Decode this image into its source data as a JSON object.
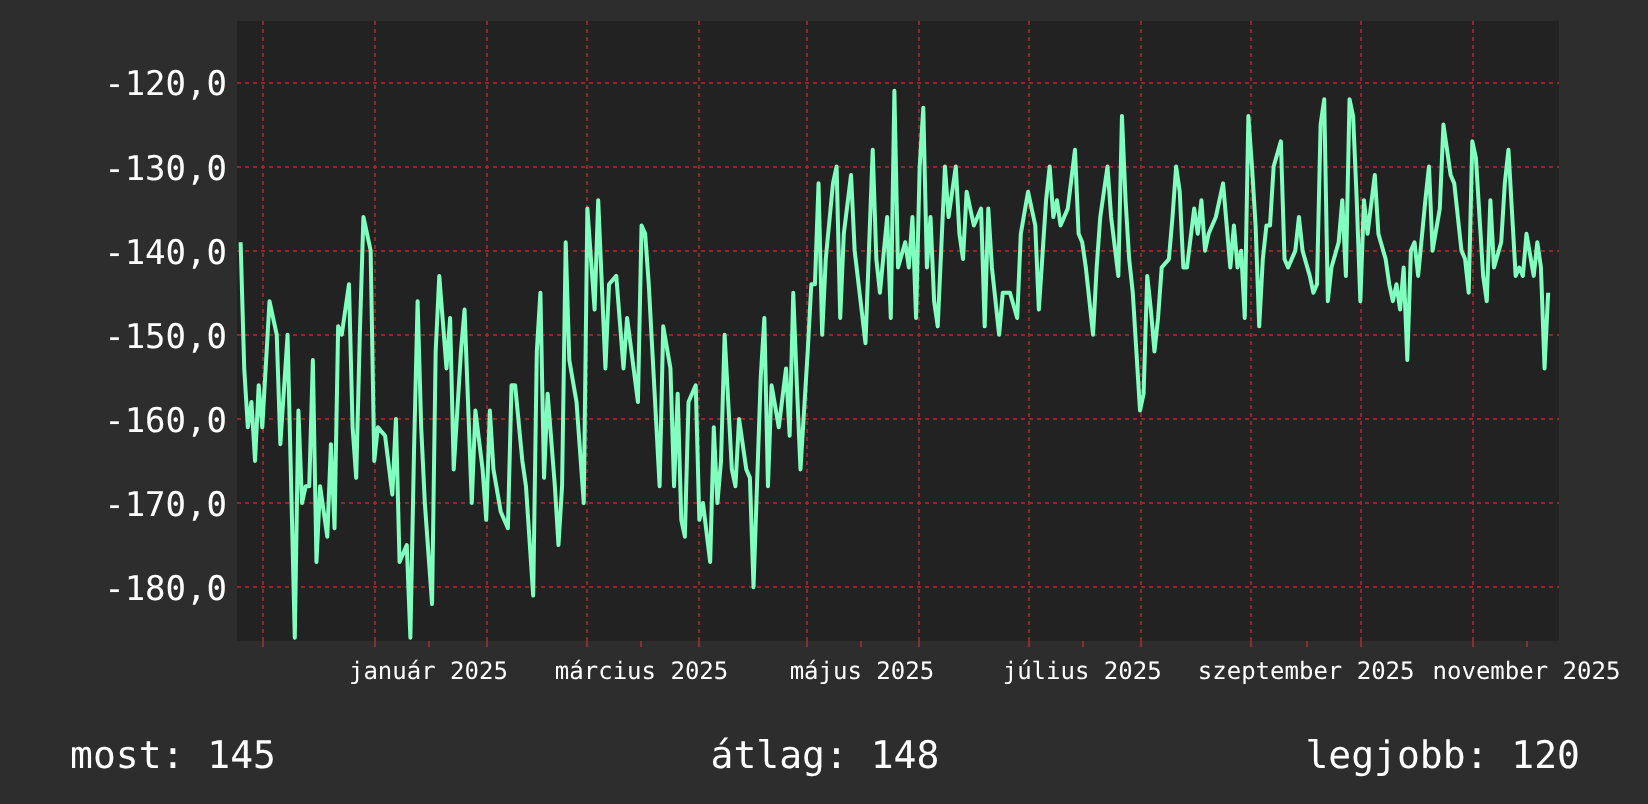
{
  "chart_data": {
    "type": "line",
    "x": [
      "2024-11-25",
      "2024-11-26",
      "2024-11-27",
      "2024-11-28",
      "2024-11-29",
      "2024-11-30",
      "2024-12-01",
      "2024-12-03",
      "2024-12-05",
      "2024-12-06",
      "2024-12-08",
      "2024-12-10",
      "2024-12-11",
      "2024-12-12",
      "2024-12-13",
      "2024-12-14",
      "2024-12-15",
      "2024-12-16",
      "2024-12-17",
      "2024-12-19",
      "2024-12-20",
      "2024-12-21",
      "2024-12-22",
      "2024-12-23",
      "2024-12-25",
      "2024-12-26",
      "2024-12-27",
      "2024-12-28",
      "2024-12-29",
      "2024-12-31",
      "2025-01-01",
      "2025-01-02",
      "2025-01-04",
      "2025-01-06",
      "2025-01-07",
      "2025-01-08",
      "2025-01-10",
      "2025-01-11",
      "2025-01-12",
      "2025-01-13",
      "2025-01-14",
      "2025-01-15",
      "2025-01-17",
      "2025-01-18",
      "2025-01-19",
      "2025-01-21",
      "2025-01-22",
      "2025-01-23",
      "2025-01-25",
      "2025-01-26",
      "2025-01-28",
      "2025-01-29",
      "2025-01-31",
      "2025-02-01",
      "2025-02-02",
      "2025-02-03",
      "2025-02-05",
      "2025-02-07",
      "2025-02-08",
      "2025-02-09",
      "2025-02-11",
      "2025-02-12",
      "2025-02-14",
      "2025-02-15",
      "2025-02-16",
      "2025-02-17",
      "2025-02-18",
      "2025-02-20",
      "2025-02-21",
      "2025-02-22",
      "2025-02-23",
      "2025-02-24",
      "2025-02-26",
      "2025-02-27",
      "2025-02-28",
      "2025-03-01",
      "2025-03-03",
      "2025-03-04",
      "2025-03-06",
      "2025-03-07",
      "2025-03-09",
      "2025-03-11",
      "2025-03-12",
      "2025-03-15",
      "2025-03-16",
      "2025-03-17",
      "2025-03-18",
      "2025-03-20",
      "2025-03-21",
      "2025-03-22",
      "2025-03-24",
      "2025-03-25",
      "2025-03-26",
      "2025-03-27",
      "2025-03-28",
      "2025-03-29",
      "2025-03-31",
      "2025-04-01",
      "2025-04-02",
      "2025-04-04",
      "2025-04-05",
      "2025-04-06",
      "2025-04-07",
      "2025-04-08",
      "2025-04-10",
      "2025-04-11",
      "2025-04-12",
      "2025-04-14",
      "2025-04-15",
      "2025-04-16",
      "2025-04-18",
      "2025-04-19",
      "2025-04-20",
      "2025-04-21",
      "2025-04-23",
      "2025-04-25",
      "2025-04-26",
      "2025-04-27",
      "2025-04-28",
      "2025-04-29",
      "2025-05-01",
      "2025-05-02",
      "2025-05-03",
      "2025-05-04",
      "2025-05-05",
      "2025-05-06",
      "2025-05-08",
      "2025-05-09",
      "2025-05-10",
      "2025-05-11",
      "2025-05-13",
      "2025-05-14",
      "2025-05-17",
      "2025-05-19",
      "2025-05-20",
      "2025-05-21",
      "2025-05-23",
      "2025-05-24",
      "2025-05-25",
      "2025-05-26",
      "2025-05-28",
      "2025-05-29",
      "2025-05-30",
      "2025-05-31",
      "2025-06-01",
      "2025-06-02",
      "2025-06-03",
      "2025-06-04",
      "2025-06-05",
      "2025-06-06",
      "2025-06-08",
      "2025-06-09",
      "2025-06-11",
      "2025-06-12",
      "2025-06-13",
      "2025-06-14",
      "2025-06-16",
      "2025-06-18",
      "2025-06-19",
      "2025-06-20",
      "2025-06-21",
      "2025-06-23",
      "2025-06-24",
      "2025-06-26",
      "2025-06-28",
      "2025-06-29",
      "2025-07-01",
      "2025-07-03",
      "2025-07-04",
      "2025-07-06",
      "2025-07-07",
      "2025-07-08",
      "2025-07-09",
      "2025-07-10",
      "2025-07-12",
      "2025-07-14",
      "2025-07-15",
      "2025-07-16",
      "2025-07-17",
      "2025-07-19",
      "2025-07-20",
      "2025-07-21",
      "2025-07-23",
      "2025-07-24",
      "2025-07-26",
      "2025-07-27",
      "2025-07-28",
      "2025-07-29",
      "2025-07-30",
      "2025-08-01",
      "2025-08-02",
      "2025-08-03",
      "2025-08-04",
      "2025-08-05",
      "2025-08-06",
      "2025-08-07",
      "2025-08-09",
      "2025-08-10",
      "2025-08-11",
      "2025-08-12",
      "2025-08-13",
      "2025-08-14",
      "2025-08-16",
      "2025-08-17",
      "2025-08-18",
      "2025-08-19",
      "2025-08-20",
      "2025-08-22",
      "2025-08-24",
      "2025-08-26",
      "2025-08-27",
      "2025-08-28",
      "2025-08-29",
      "2025-08-30",
      "2025-08-31",
      "2025-09-01",
      "2025-09-02",
      "2025-09-03",
      "2025-09-04",
      "2025-09-05",
      "2025-09-06",
      "2025-09-07",
      "2025-09-09",
      "2025-09-10",
      "2025-09-11",
      "2025-09-13",
      "2025-09-14",
      "2025-09-15",
      "2025-09-17",
      "2025-09-18",
      "2025-09-19",
      "2025-09-20",
      "2025-09-21",
      "2025-09-22",
      "2025-09-23",
      "2025-09-25",
      "2025-09-26",
      "2025-09-27",
      "2025-09-28",
      "2025-09-29",
      "2025-09-30",
      "2025-10-01",
      "2025-10-02",
      "2025-10-03",
      "2025-10-05",
      "2025-10-06",
      "2025-10-08",
      "2025-10-09",
      "2025-10-10",
      "2025-10-11",
      "2025-10-12",
      "2025-10-13",
      "2025-10-14",
      "2025-10-15",
      "2025-10-16",
      "2025-10-17",
      "2025-10-19",
      "2025-10-20",
      "2025-10-21",
      "2025-10-23",
      "2025-10-24",
      "2025-10-26",
      "2025-10-27",
      "2025-10-29",
      "2025-10-30",
      "2025-10-31",
      "2025-11-01",
      "2025-11-02",
      "2025-11-04",
      "2025-11-05",
      "2025-11-06",
      "2025-11-07",
      "2025-11-09",
      "2025-11-10",
      "2025-11-11",
      "2025-11-13",
      "2025-11-14",
      "2025-11-15",
      "2025-11-16",
      "2025-11-18",
      "2025-11-19",
      "2025-11-20",
      "2025-11-21",
      "2025-11-22"
    ],
    "series": [
      {
        "color": "#80ffbf",
        "values": [
          -139,
          -154,
          -161,
          -158,
          -165,
          -156,
          -161,
          -146,
          -150,
          -163,
          -150,
          -186,
          -159,
          -170,
          -168,
          -168,
          -153,
          -177,
          -168,
          -174,
          -163,
          -173,
          -149,
          -150,
          -144,
          -161,
          -167,
          -150,
          -136,
          -140,
          -165,
          -161,
          -162,
          -169,
          -160,
          -177,
          -175,
          -186,
          -164,
          -146,
          -161,
          -170,
          -182,
          -152,
          -143,
          -154,
          -148,
          -166,
          -152,
          -147,
          -170,
          -159,
          -166,
          -172,
          -159,
          -166,
          -171,
          -173,
          -156,
          -156,
          -165,
          -168,
          -181,
          -152,
          -145,
          -167,
          -157,
          -168,
          -175,
          -168,
          -139,
          -153,
          -158,
          -164,
          -170,
          -135,
          -147,
          -134,
          -154,
          -144,
          -143,
          -154,
          -148,
          -158,
          -137,
          -138,
          -144,
          -160,
          -168,
          -149,
          -154,
          -168,
          -157,
          -172,
          -174,
          -158,
          -156,
          -172,
          -170,
          -177,
          -161,
          -170,
          -165,
          -150,
          -166,
          -168,
          -160,
          -166,
          -167,
          -180,
          -155,
          -148,
          -168,
          -156,
          -161,
          -154,
          -162,
          -145,
          -156,
          -166,
          -152,
          -144,
          -144,
          -132,
          -150,
          -141,
          -132,
          -130,
          -148,
          -138,
          -131,
          -140,
          -151,
          -128,
          -141,
          -145,
          -136,
          -148,
          -121,
          -142,
          -139,
          -142,
          -136,
          -148,
          -130,
          -123,
          -142,
          -136,
          -146,
          -149,
          -130,
          -136,
          -130,
          -138,
          -141,
          -133,
          -137,
          -135,
          -149,
          -135,
          -142,
          -150,
          -145,
          -145,
          -148,
          -138,
          -133,
          -137,
          -147,
          -134,
          -130,
          -136,
          -134,
          -137,
          -135,
          -128,
          -138,
          -139,
          -142,
          -150,
          -142,
          -136,
          -130,
          -136,
          -143,
          -124,
          -134,
          -141,
          -145,
          -159,
          -157,
          -143,
          -147,
          -152,
          -148,
          -142,
          -141,
          -136,
          -130,
          -133,
          -142,
          -142,
          -135,
          -138,
          -134,
          -140,
          -138,
          -136,
          -132,
          -142,
          -137,
          -142,
          -140,
          -148,
          -124,
          -130,
          -137,
          -149,
          -141,
          -137,
          -137,
          -130,
          -127,
          -141,
          -142,
          -140,
          -136,
          -140,
          -143,
          -145,
          -144,
          -125,
          -122,
          -146,
          -142,
          -139,
          -134,
          -143,
          -122,
          -124,
          -134,
          -146,
          -134,
          -138,
          -131,
          -138,
          -141,
          -144,
          -146,
          -144,
          -147,
          -142,
          -153,
          -140,
          -139,
          -143,
          -134,
          -130,
          -140,
          -135,
          -125,
          -131,
          -132,
          -140,
          -141,
          -145,
          -127,
          -129,
          -143,
          -146,
          -134,
          -142,
          -139,
          -132,
          -128,
          -143,
          -142,
          -143,
          -138,
          -143,
          -139,
          -142,
          -154,
          -145
        ]
      }
    ],
    "xlim": [
      "2024-11-24",
      "2025-11-25"
    ],
    "xticks": [
      {
        "value": "2024-12-01",
        "label": null
      },
      {
        "value": "2025-01-01",
        "label": null
      },
      {
        "value": "2025-01-16",
        "label": "január 2025"
      },
      {
        "value": "2025-02-01",
        "label": null
      },
      {
        "value": "2025-03-01",
        "label": null
      },
      {
        "value": "2025-03-16",
        "label": "március 2025"
      },
      {
        "value": "2025-04-01",
        "label": null
      },
      {
        "value": "2025-05-01",
        "label": null
      },
      {
        "value": "2025-05-16",
        "label": "május 2025"
      },
      {
        "value": "2025-06-01",
        "label": null
      },
      {
        "value": "2025-07-01",
        "label": null
      },
      {
        "value": "2025-07-16",
        "label": "július 2025"
      },
      {
        "value": "2025-08-01",
        "label": null
      },
      {
        "value": "2025-09-01",
        "label": null
      },
      {
        "value": "2025-09-16",
        "label": "szeptember 2025"
      },
      {
        "value": "2025-10-01",
        "label": null
      },
      {
        "value": "2025-11-01",
        "label": null
      },
      {
        "value": "2025-11-16",
        "label": "november 2025"
      }
    ],
    "ylim": [
      -186.4,
      -112.7
    ],
    "yticks": [
      {
        "value": -180,
        "label": "-180,0"
      },
      {
        "value": -170,
        "label": "-170,0"
      },
      {
        "value": -160,
        "label": "-160,0"
      },
      {
        "value": -150,
        "label": "-150,0"
      },
      {
        "value": -140,
        "label": "-140,0"
      },
      {
        "value": -130,
        "label": "-130,0"
      },
      {
        "value": -120,
        "label": "-120,0"
      }
    ],
    "grid": true,
    "line_style": "solid",
    "annotations": [
      "most: 145",
      "átlag: 148",
      "legjobb: 120"
    ]
  }
}
